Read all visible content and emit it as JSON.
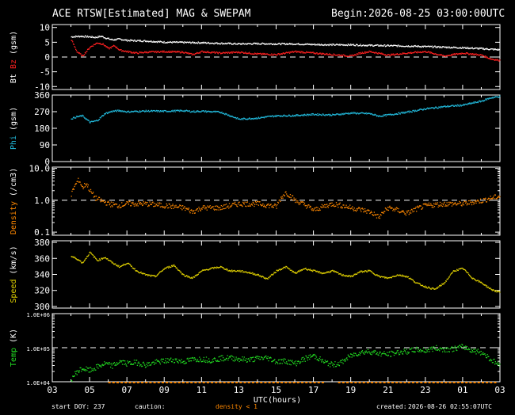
{
  "header": {
    "title": "ACE RTSW[Estimated] MAG & SWEPAM",
    "begin_label": "Begin:",
    "begin_value": "2026-08-25 03:00:00UTC"
  },
  "footer": {
    "start_doy_label": "start DOY:",
    "start_doy_value": "237",
    "caution_label": "caution:",
    "caution_note": "density < 1",
    "created_label": "created:",
    "created_value": "2026-08-26 02:55:07UTC"
  },
  "colors": {
    "background": "#000000",
    "frame": "#ffffff",
    "bt": "#ffffff",
    "bz": "#ff2020",
    "phi": "#22bbdd",
    "density": "#ff8800",
    "speed": "#e0d000",
    "temp": "#22dd22",
    "caution_bar": "#ff8800"
  },
  "chart_data": {
    "type": "scatter",
    "xlabel": "UTC(hours)",
    "x_ticks": [
      "03",
      "05",
      "07",
      "09",
      "11",
      "13",
      "15",
      "17",
      "19",
      "21",
      "23",
      "01",
      "03"
    ],
    "x_range_hours": [
      0,
      24
    ],
    "panels": [
      {
        "id": "mag",
        "ylabel_parts": [
          {
            "text": "Bt",
            "color": "#ffffff"
          },
          {
            "text": " Bz",
            "color": "#ff2020"
          },
          {
            "text": " (gsm)",
            "color": "#ffffff"
          }
        ],
        "scale": "linear",
        "ylim": [
          -11,
          11
        ],
        "y_ticks": [
          10,
          5,
          0,
          -5,
          -10
        ],
        "y_tick_labels": [
          "10",
          "5",
          "0",
          "-5",
          "-10"
        ],
        "ref_line": 0,
        "series": [
          {
            "key": "bt",
            "x": [
              1.0,
              1.5,
              2.0,
              2.3,
              2.6,
              2.9,
              3.2,
              3.6,
              4.0,
              5.0,
              6.0,
              7.0,
              8.0,
              9.0,
              10.0,
              11.0,
              12.0,
              13.0,
              14.0,
              15.0,
              16.0,
              17.0,
              18.0,
              19.0,
              20.0,
              21.0,
              22.0,
              23.0,
              23.5,
              24.0
            ],
            "y": [
              7.0,
              7.2,
              7.0,
              6.8,
              7.2,
              6.5,
              6.0,
              6.2,
              5.8,
              5.6,
              5.2,
              5.1,
              5.0,
              4.8,
              4.6,
              4.7,
              4.6,
              4.6,
              4.4,
              4.3,
              4.3,
              4.1,
              4.0,
              3.9,
              3.7,
              3.5,
              3.3,
              3.0,
              2.8,
              2.6
            ]
          },
          {
            "key": "bz",
            "x": [
              1.0,
              1.3,
              1.6,
              2.0,
              2.4,
              2.7,
              3.0,
              3.3,
              3.6,
              4.0,
              4.5,
              5.0,
              6.0,
              7.0,
              7.5,
              8.0,
              9.0,
              10.0,
              11.0,
              12.0,
              13.0,
              14.0,
              15.0,
              16.0,
              16.5,
              17.0,
              18.0,
              19.0,
              20.0,
              21.0,
              22.0,
              23.0,
              23.5,
              24.0
            ],
            "y": [
              6.0,
              2.0,
              0.5,
              3.5,
              5.0,
              4.5,
              3.0,
              4.0,
              2.5,
              2.0,
              1.5,
              1.8,
              2.0,
              1.8,
              1.0,
              2.0,
              1.5,
              1.8,
              1.2,
              1.0,
              2.0,
              1.5,
              1.0,
              0.5,
              1.5,
              2.0,
              0.8,
              1.5,
              2.0,
              0.5,
              1.5,
              0.8,
              -0.5,
              -1.0
            ]
          }
        ]
      },
      {
        "id": "phi",
        "ylabel_parts": [
          {
            "text": "Phi",
            "color": "#22bbdd"
          },
          {
            "text": " (gsm)",
            "color": "#ffffff"
          }
        ],
        "scale": "linear",
        "ylim": [
          0,
          360
        ],
        "y_ticks": [
          360,
          270,
          180,
          90,
          0
        ],
        "y_tick_labels": [
          "360",
          "270",
          "180",
          "90",
          "0"
        ],
        "ref_line": null,
        "series": [
          {
            "key": "phi",
            "x": [
              1.0,
              1.3,
              1.6,
              2.0,
              2.4,
              2.8,
              3.2,
              3.6,
              4.0,
              5.0,
              6.0,
              7.0,
              7.5,
              8.0,
              9.0,
              10.0,
              11.0,
              11.5,
              12.0,
              13.0,
              14.0,
              15.0,
              16.0,
              17.0,
              17.5,
              18.0,
              19.0,
              20.0,
              21.0,
              22.0,
              23.0,
              23.5,
              24.0
            ],
            "y": [
              235,
              245,
              250,
              215,
              225,
              262,
              275,
              278,
              272,
              276,
              275,
              278,
              273,
              275,
              270,
              232,
              238,
              245,
              250,
              252,
              258,
              255,
              265,
              262,
              248,
              255,
              270,
              288,
              300,
              308,
              330,
              348,
              355
            ]
          }
        ]
      },
      {
        "id": "density",
        "ylabel_parts": [
          {
            "text": "Density",
            "color": "#ff8800"
          },
          {
            "text": " (/cm3)",
            "color": "#ffffff"
          }
        ],
        "scale": "log",
        "ylim": [
          0.08,
          11
        ],
        "y_ticks": [
          10.0,
          1.0,
          0.1
        ],
        "y_tick_labels": [
          "10.0",
          "1.0",
          "0.1"
        ],
        "ref_line": 1.0,
        "series": [
          {
            "key": "density",
            "x": [
              1.0,
              1.2,
              1.4,
              1.6,
              1.8,
              2.0,
              2.3,
              2.6,
              3.0,
              3.5,
              4.0,
              5.0,
              6.0,
              7.0,
              7.5,
              8.0,
              9.0,
              10.0,
              11.0,
              12.0,
              12.5,
              13.0,
              14.0,
              15.0,
              16.0,
              17.0,
              17.5,
              18.0,
              19.0,
              20.0,
              21.0,
              22.0,
              23.0,
              23.5,
              24.0
            ],
            "y": [
              1.5,
              3.0,
              4.5,
              2.5,
              3.5,
              2.0,
              1.2,
              1.0,
              0.8,
              0.7,
              0.8,
              0.8,
              0.7,
              0.6,
              0.45,
              0.6,
              0.6,
              0.8,
              0.8,
              0.65,
              1.8,
              1.0,
              0.5,
              0.8,
              0.6,
              0.45,
              0.3,
              0.6,
              0.4,
              0.7,
              0.8,
              0.8,
              1.0,
              1.2,
              1.4
            ]
          }
        ]
      },
      {
        "id": "speed",
        "ylabel_parts": [
          {
            "text": "Speed",
            "color": "#e0d000"
          },
          {
            "text": " (km/s)",
            "color": "#ffffff"
          }
        ],
        "scale": "linear",
        "ylim": [
          298,
          382
        ],
        "y_ticks": [
          380,
          360,
          340,
          320,
          300
        ],
        "y_tick_labels": [
          "380",
          "360",
          "340",
          "320",
          "300"
        ],
        "ref_line": null,
        "series": [
          {
            "key": "speed",
            "x": [
              1.0,
              1.3,
              1.6,
              2.0,
              2.4,
              2.8,
              3.2,
              3.6,
              4.0,
              4.5,
              5.0,
              5.5,
              6.0,
              6.5,
              7.0,
              7.5,
              8.0,
              8.5,
              9.0,
              9.5,
              10.0,
              10.5,
              11.0,
              11.5,
              12.0,
              12.5,
              13.0,
              13.5,
              14.0,
              14.5,
              15.0,
              15.5,
              16.0,
              16.5,
              17.0,
              17.5,
              18.0,
              18.5,
              19.0,
              19.5,
              20.0,
              20.5,
              21.0,
              21.5,
              22.0,
              22.5,
              23.0,
              23.5,
              24.0
            ],
            "y": [
              363,
              360,
              355,
              368,
              358,
              362,
              355,
              350,
              355,
              345,
              340,
              338,
              348,
              352,
              340,
              336,
              345,
              348,
              350,
              345,
              345,
              343,
              340,
              335,
              345,
              350,
              342,
              348,
              345,
              342,
              345,
              340,
              338,
              344,
              345,
              338,
              336,
              340,
              338,
              330,
              325,
              322,
              330,
              345,
              348,
              336,
              330,
              322,
              318
            ]
          }
        ]
      },
      {
        "id": "temp",
        "ylabel_parts": [
          {
            "text": "Temp",
            "color": "#22dd22"
          },
          {
            "text": " (K)",
            "color": "#ffffff"
          }
        ],
        "scale": "log",
        "ylim": [
          10000,
          1000000
        ],
        "y_ticks": [
          1000000,
          100000,
          10000
        ],
        "y_tick_labels": [
          "1.0E+06",
          "1.0E+05",
          "1.0E+04"
        ],
        "ref_line": 100000,
        "series": [
          {
            "key": "temp",
            "x": [
              1.0,
              1.3,
              1.6,
              2.0,
              2.4,
              2.8,
              3.2,
              3.6,
              4.0,
              4.5,
              5.0,
              5.5,
              6.0,
              6.5,
              7.0,
              7.5,
              8.0,
              8.5,
              9.0,
              9.5,
              10.0,
              10.5,
              11.0,
              11.5,
              12.0,
              12.5,
              13.0,
              13.5,
              14.0,
              14.5,
              15.0,
              15.5,
              16.0,
              16.5,
              17.0,
              17.5,
              18.0,
              18.5,
              19.0,
              19.5,
              20.0,
              20.5,
              21.0,
              21.5,
              22.0,
              22.5,
              23.0,
              23.5,
              24.0
            ],
            "y": [
              12000,
              20000,
              25000,
              22000,
              28000,
              35000,
              30000,
              40000,
              35000,
              38000,
              32000,
              38000,
              42000,
              45000,
              40000,
              46000,
              48000,
              44000,
              50000,
              52000,
              48000,
              45000,
              50000,
              52000,
              40000,
              42000,
              35000,
              48000,
              60000,
              40000,
              32000,
              38000,
              60000,
              75000,
              80000,
              70000,
              65000,
              75000,
              80000,
              90000,
              85000,
              100000,
              92000,
              95000,
              110000,
              85000,
              75000,
              45000,
              30000
            ]
          }
        ]
      }
    ]
  }
}
